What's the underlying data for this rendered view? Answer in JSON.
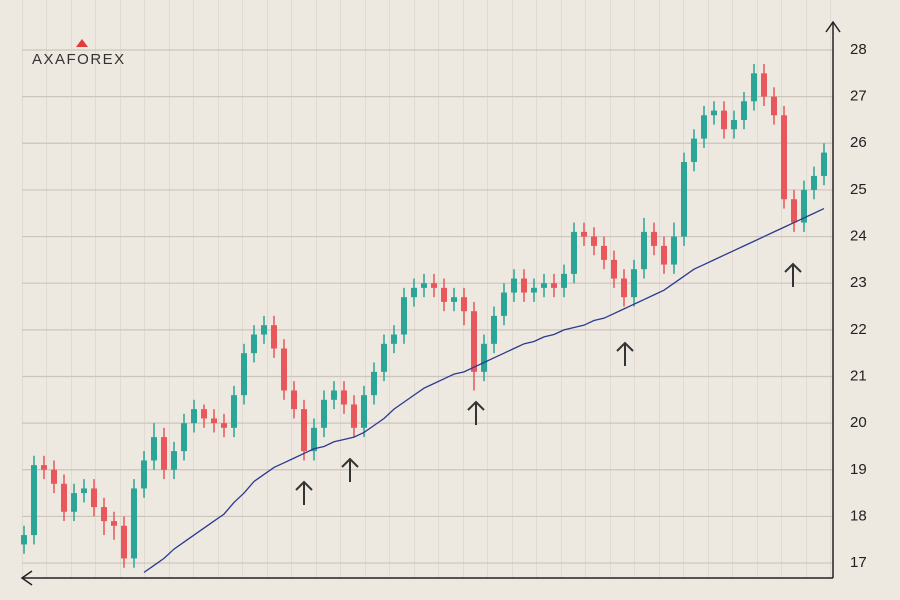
{
  "logo": "AXAFOREX",
  "chart_data": {
    "type": "candlestick",
    "up_color": "#2aa597",
    "down_color": "#e8575c",
    "open": [
      17.4,
      17.6,
      19.1,
      19.0,
      18.7,
      18.1,
      18.5,
      18.6,
      18.2,
      17.9,
      17.8,
      17.1,
      18.6,
      19.2,
      19.7,
      19.0,
      19.4,
      20.0,
      20.3,
      20.1,
      20.0,
      19.9,
      20.6,
      21.5,
      21.9,
      22.1,
      21.6,
      20.7,
      20.3,
      19.4,
      19.9,
      20.5,
      20.7,
      20.4,
      19.9,
      20.6,
      21.1,
      21.7,
      21.9,
      22.7,
      22.9,
      23.0,
      22.9,
      22.6,
      22.7,
      22.4,
      21.1,
      21.7,
      22.3,
      22.8,
      23.1,
      22.8,
      22.9,
      23.0,
      22.9,
      23.2,
      24.1,
      24.0,
      23.8,
      23.5,
      23.1,
      22.7,
      23.3,
      24.1,
      23.8,
      23.4,
      24.0,
      25.6,
      26.1,
      26.6,
      26.7,
      26.3,
      26.5,
      26.9,
      27.5,
      27.0,
      26.6,
      24.8,
      24.3,
      25.0,
      25.3
    ],
    "high": [
      17.8,
      19.3,
      19.3,
      19.2,
      18.9,
      18.7,
      18.8,
      18.8,
      18.4,
      18.1,
      18.0,
      18.8,
      19.4,
      20.0,
      19.9,
      19.6,
      20.2,
      20.5,
      20.4,
      20.3,
      20.2,
      20.8,
      21.7,
      22.1,
      22.3,
      22.3,
      21.8,
      20.9,
      20.5,
      20.1,
      20.7,
      20.9,
      20.9,
      20.6,
      20.8,
      21.3,
      21.9,
      22.1,
      22.9,
      23.1,
      23.2,
      23.2,
      23.1,
      22.9,
      22.9,
      22.6,
      21.9,
      22.5,
      23.0,
      23.3,
      23.3,
      23.1,
      23.2,
      23.2,
      23.4,
      24.3,
      24.3,
      24.2,
      24.0,
      23.7,
      23.3,
      23.5,
      24.4,
      24.3,
      24.0,
      24.3,
      25.8,
      26.3,
      26.8,
      26.9,
      26.9,
      26.7,
      27.1,
      27.7,
      27.7,
      27.2,
      26.8,
      25.0,
      25.2,
      25.5,
      26.0
    ],
    "low": [
      17.2,
      17.4,
      18.8,
      18.5,
      17.9,
      17.9,
      18.3,
      18.0,
      17.6,
      17.5,
      16.9,
      16.9,
      18.4,
      19.0,
      18.8,
      18.8,
      19.2,
      19.8,
      19.9,
      19.8,
      19.7,
      19.7,
      20.4,
      21.3,
      21.7,
      21.4,
      20.5,
      20.1,
      19.2,
      19.2,
      19.7,
      20.3,
      20.2,
      19.7,
      19.7,
      20.4,
      20.9,
      21.5,
      21.7,
      22.5,
      22.7,
      22.7,
      22.4,
      22.4,
      22.1,
      20.7,
      20.9,
      21.5,
      22.1,
      22.6,
      22.6,
      22.6,
      22.7,
      22.7,
      22.7,
      23.0,
      23.8,
      23.6,
      23.3,
      22.9,
      22.5,
      22.5,
      23.1,
      23.6,
      23.2,
      23.2,
      23.8,
      25.4,
      25.9,
      26.4,
      26.1,
      26.1,
      26.3,
      26.7,
      26.8,
      26.4,
      24.6,
      24.1,
      24.1,
      24.8,
      25.1
    ],
    "close": [
      17.6,
      19.1,
      19.0,
      18.7,
      18.1,
      18.5,
      18.6,
      18.2,
      17.9,
      17.8,
      17.1,
      18.6,
      19.2,
      19.7,
      19.0,
      19.4,
      20.0,
      20.3,
      20.1,
      20.0,
      19.9,
      20.6,
      21.5,
      21.9,
      22.1,
      21.6,
      20.7,
      20.3,
      19.4,
      19.9,
      20.5,
      20.7,
      20.4,
      19.9,
      20.6,
      21.1,
      21.7,
      21.9,
      22.7,
      22.9,
      23.0,
      22.9,
      22.6,
      22.7,
      22.4,
      21.1,
      21.7,
      22.3,
      22.8,
      23.1,
      22.8,
      22.9,
      23.0,
      22.9,
      23.2,
      24.1,
      24.0,
      23.8,
      23.5,
      23.1,
      22.7,
      23.3,
      24.1,
      23.8,
      23.4,
      24.0,
      25.6,
      26.1,
      26.6,
      26.7,
      26.3,
      26.5,
      26.9,
      27.5,
      27.0,
      26.6,
      24.8,
      24.3,
      25.0,
      25.3,
      25.8
    ],
    "moving_average": {
      "color": "#2b3a8f",
      "values": [
        null,
        null,
        null,
        null,
        null,
        null,
        null,
        null,
        null,
        null,
        null,
        null,
        16.8,
        16.95,
        17.1,
        17.3,
        17.45,
        17.6,
        17.75,
        17.9,
        18.05,
        18.3,
        18.5,
        18.75,
        18.9,
        19.05,
        19.15,
        19.25,
        19.35,
        19.45,
        19.5,
        19.6,
        19.65,
        19.7,
        19.8,
        19.95,
        20.1,
        20.3,
        20.45,
        20.6,
        20.75,
        20.85,
        20.95,
        21.05,
        21.1,
        21.2,
        21.3,
        21.4,
        21.5,
        21.6,
        21.7,
        21.75,
        21.85,
        21.9,
        22.0,
        22.05,
        22.1,
        22.2,
        22.25,
        22.35,
        22.45,
        22.55,
        22.65,
        22.75,
        22.85,
        23.0,
        23.15,
        23.3,
        23.4,
        23.5,
        23.6,
        23.7,
        23.8,
        23.9,
        24.0,
        24.1,
        24.2,
        24.3,
        24.4,
        24.5,
        24.6
      ]
    },
    "ylim": [
      16.68,
      28.6
    ],
    "yticks": [
      17,
      18,
      19,
      20,
      21,
      22,
      23,
      24,
      25,
      26,
      27,
      28
    ],
    "grid": true
  }
}
